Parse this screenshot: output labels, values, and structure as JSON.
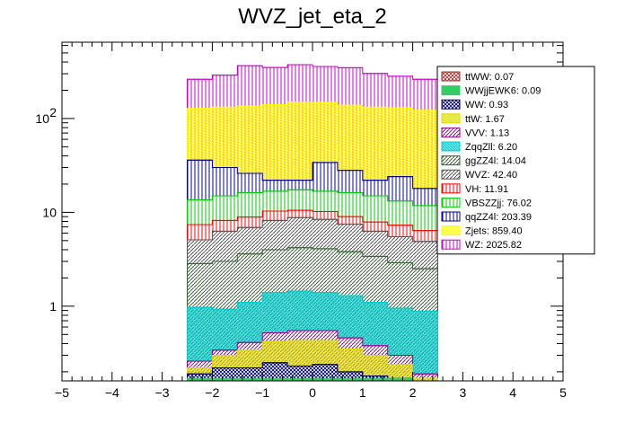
{
  "chart_data": {
    "type": "bar",
    "title": "WVZ_jet_eta_2",
    "xlabel": "",
    "ylabel": "",
    "stacked": true,
    "log_y": true,
    "xlim": [
      -5,
      5
    ],
    "ylim": [
      0.16,
      650
    ],
    "x_ticks": [
      "−5",
      "−4",
      "−3",
      "−2",
      "−1",
      "0",
      "1",
      "2",
      "3",
      "4",
      "5"
    ],
    "y_ticks": [
      {
        "value": 1,
        "label": "1"
      },
      {
        "value": 10,
        "label": "10"
      },
      {
        "value": 100,
        "label": "10",
        "exp": "2"
      }
    ],
    "grid": false,
    "legend_position": "top-right",
    "bin_edges": [
      -2.5,
      -2,
      -1.5,
      -1,
      -0.5,
      0,
      0.5,
      1,
      1.5,
      2,
      2.5
    ],
    "series": [
      {
        "name": "WZ: 2025.82",
        "color": "#cc00cc",
        "hatch": "vertical",
        "values": [
          262,
          290,
          365,
          350,
          375,
          358,
          348,
          302,
          282,
          262
        ]
      },
      {
        "name": "Zjets: 859.40",
        "color": "#ffff00",
        "hatch": "dense",
        "values": [
          128,
          132,
          136,
          140,
          150,
          148,
          138,
          132,
          130,
          122
        ]
      },
      {
        "name": "qqZZ4l: 203.39",
        "color": "#000099",
        "hatch": "vertical",
        "values": [
          36,
          30,
          26,
          22,
          22,
          34,
          28,
          22,
          24,
          18
        ]
      },
      {
        "name": "VBSZZjj: 76.02",
        "color": "#00cc00",
        "hatch": "vertical",
        "values": [
          13.6,
          15.0,
          16.2,
          16.8,
          17.4,
          16.8,
          16.2,
          15.0,
          13.2,
          11.8
        ]
      },
      {
        "name": "VH: 11.91",
        "color": "#ff0000",
        "hatch": "vertical",
        "values": [
          7.4,
          8.2,
          8.9,
          10.3,
          10.5,
          10.2,
          9.0,
          7.9,
          7.3,
          6.4
        ]
      },
      {
        "name": "WVZ: 42.40",
        "color": "#555555",
        "hatch": "diag",
        "values": [
          5.1,
          6.3,
          6.9,
          8.2,
          8.8,
          8.4,
          7.5,
          6.3,
          5.5,
          4.9
        ]
      },
      {
        "name": "ggZZ4l: 14.04",
        "color": "#336633",
        "hatch": "diag",
        "values": [
          2.85,
          3.0,
          3.6,
          4.0,
          4.2,
          4.1,
          3.8,
          3.4,
          2.9,
          2.5
        ]
      },
      {
        "name": "ZqqZll: 6.20",
        "color": "#00cccc",
        "hatch": "dense",
        "values": [
          0.97,
          0.93,
          1.1,
          1.4,
          1.45,
          1.4,
          1.3,
          1.1,
          0.95,
          0.88
        ]
      },
      {
        "name": "VVV: 1.13",
        "color": "#990099",
        "hatch": "diag",
        "values": [
          0.26,
          0.34,
          0.41,
          0.52,
          0.55,
          0.55,
          0.46,
          0.38,
          0.3,
          0.19
        ]
      },
      {
        "name": "ttW: 1.67",
        "color": "#dddd00",
        "hatch": "dense",
        "values": [
          0.22,
          0.3,
          0.34,
          0.42,
          0.43,
          0.43,
          0.35,
          0.3,
          0.24,
          0.17
        ]
      },
      {
        "name": "WW: 0.93",
        "color": "#000066",
        "hatch": "cross",
        "values": [
          0.19,
          0.22,
          0.22,
          0.25,
          0.23,
          0.24,
          0.2,
          0.18,
          0.17,
          0.16
        ]
      },
      {
        "name": "WWjjEWK6: 0.09",
        "color": "#33cc66",
        "hatch": "solid",
        "values": [
          0.17,
          0.17,
          0.17,
          0.17,
          0.17,
          0.17,
          0.17,
          0.17,
          0.17,
          0.16
        ]
      },
      {
        "name": "ttWW: 0.07",
        "color": "#aa3333",
        "hatch": "cross",
        "values": [
          0.16,
          0.16,
          0.16,
          0.16,
          0.16,
          0.16,
          0.16,
          0.16,
          0.16,
          0.16
        ]
      }
    ],
    "legend_order": [
      "ttWW: 0.07",
      "WWjjEWK6: 0.09",
      "WW: 0.93",
      "ttW: 1.67",
      "VVV: 1.13",
      "ZqqZll: 6.20",
      "ggZZ4l: 14.04",
      "WVZ: 42.40",
      "VH: 11.91",
      "VBSZZjj: 76.02",
      "qqZZ4l: 203.39",
      "Zjets: 859.40",
      "WZ: 2025.82"
    ]
  }
}
